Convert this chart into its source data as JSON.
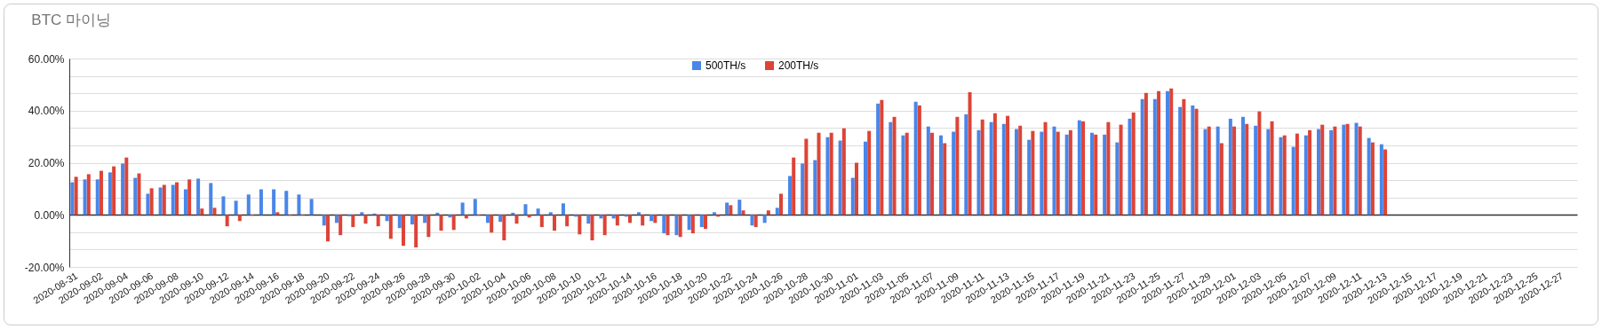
{
  "chart_data": {
    "type": "bar",
    "title": "BTC 마이닝",
    "categories": [
      "2020-08-31",
      null,
      "2020-09-02",
      null,
      "2020-09-04",
      null,
      "2020-09-06",
      null,
      "2020-09-08",
      null,
      "2020-09-10",
      null,
      "2020-09-12",
      null,
      "2020-09-14",
      null,
      "2020-09-16",
      null,
      "2020-09-18",
      null,
      "2020-09-20",
      null,
      "2020-09-22",
      null,
      "2020-09-24",
      null,
      "2020-09-26",
      null,
      "2020-09-28",
      null,
      "2020-09-30",
      null,
      "2020-10-02",
      null,
      "2020-10-04",
      null,
      "2020-10-06",
      null,
      "2020-10-08",
      null,
      "2020-10-10",
      null,
      "2020-10-12",
      null,
      "2020-10-14",
      null,
      "2020-10-16",
      null,
      "2020-10-18",
      null,
      "2020-10-20",
      null,
      "2020-10-22",
      null,
      "2020-10-24",
      null,
      "2020-10-26",
      null,
      "2020-10-28",
      null,
      "2020-10-30",
      null,
      "2020-11-01",
      null,
      "2020-11-03",
      null,
      "2020-11-05",
      null,
      "2020-11-07",
      null,
      "2020-11-09",
      null,
      "2020-11-11",
      null,
      "2020-11-13",
      null,
      "2020-11-15",
      null,
      "2020-11-17",
      null,
      "2020-11-19",
      null,
      "2020-11-21",
      null,
      "2020-11-23",
      null,
      "2020-11-25",
      null,
      "2020-11-27",
      null,
      "2020-11-29",
      null,
      "2020-12-01",
      null,
      "2020-12-03",
      null,
      "2020-12-05",
      null,
      "2020-12-07",
      null,
      "2020-12-09",
      null,
      "2020-12-11",
      null,
      "2020-12-13",
      null,
      "2020-12-15",
      null,
      "2020-12-17",
      null,
      "2020-12-19",
      null,
      "2020-12-21",
      null,
      "2020-12-23",
      null,
      "2020-12-25",
      null,
      "2020-12-27",
      null
    ],
    "series": [
      {
        "name": "500TH/s",
        "color": "#4a86e8",
        "values": [
          12.5,
          13.6,
          13.6,
          16.3,
          19.7,
          14.2,
          8.1,
          10.5,
          11.5,
          9.8,
          13.9,
          12.2,
          7.1,
          5.4,
          7.8,
          9.8,
          9.8,
          9.2,
          7.8,
          6.1,
          -4.1,
          -3.1,
          -0.5,
          1.0,
          0.5,
          -2.4,
          -5.1,
          -3.7,
          -3.1,
          0.8,
          -1.0,
          4.7,
          6.1,
          -3.1,
          -2.7,
          0.8,
          4.1,
          2.4,
          1.0,
          4.4,
          -0.7,
          -3.4,
          -1.4,
          -1.4,
          -0.7,
          1.0,
          -2.4,
          -7.1,
          -7.8,
          -5.8,
          -4.7,
          1.0,
          4.7,
          5.8,
          -4.1,
          -3.1,
          2.7,
          14.9,
          19.7,
          21.0,
          29.8,
          28.5,
          14.2,
          28.1,
          42.7,
          35.6,
          30.5,
          43.4,
          33.9,
          30.5,
          31.9,
          38.6,
          32.5,
          35.6,
          34.9,
          32.9,
          28.8,
          31.9,
          33.9,
          30.8,
          36.3,
          31.5,
          30.8,
          27.8,
          36.9,
          44.4,
          44.4,
          47.5,
          41.4,
          42.0,
          32.9,
          33.9,
          36.9,
          37.6,
          34.2,
          32.9,
          29.8,
          26.1,
          30.5,
          32.9,
          32.5,
          34.6,
          35.3,
          29.5,
          27.1,
          null,
          null,
          null,
          null,
          null,
          null,
          null,
          null,
          null,
          null,
          null,
          null,
          null,
          null,
          null
        ]
      },
      {
        "name": "200TH/s",
        "color": "#dc4437",
        "values": [
          14.6,
          15.6,
          16.9,
          18.6,
          22.0,
          15.9,
          10.2,
          11.5,
          12.5,
          13.6,
          2.4,
          2.7,
          -4.4,
          -2.4,
          -0.3,
          0,
          1.0,
          -0.3,
          -0.2,
          0,
          -10.2,
          -7.8,
          -4.7,
          -3.4,
          -4.4,
          -9.2,
          -11.9,
          -12.5,
          -8.5,
          -6.1,
          -5.8,
          -1.4,
          -0.3,
          -6.8,
          -9.8,
          -3.4,
          -1.0,
          -4.7,
          -6.1,
          -4.4,
          -7.5,
          -9.8,
          -7.8,
          -4.1,
          -3.1,
          -4.1,
          -3.1,
          -7.8,
          -8.5,
          -7.1,
          -5.4,
          -0.7,
          3.7,
          1.7,
          -4.7,
          1.7,
          8.1,
          22.0,
          29.2,
          31.5,
          31.5,
          33.2,
          20.0,
          32.2,
          44.1,
          37.6,
          31.5,
          42.0,
          31.5,
          27.5,
          37.6,
          47.1,
          36.6,
          39.0,
          38.0,
          34.2,
          32.2,
          35.6,
          31.9,
          32.5,
          35.9,
          30.8,
          35.6,
          34.6,
          39.3,
          46.8,
          47.5,
          48.5,
          44.4,
          40.7,
          33.9,
          27.5,
          33.9,
          34.9,
          39.7,
          35.9,
          30.5,
          31.2,
          32.5,
          34.6,
          33.9,
          34.9,
          33.9,
          27.8,
          25.1,
          null,
          null,
          null,
          null,
          null,
          null,
          null,
          null,
          null,
          null,
          null,
          null,
          null,
          null,
          null
        ]
      }
    ],
    "ylim": [
      -20,
      60
    ],
    "yticks": [
      {
        "value": -20,
        "label": "-20.00%"
      },
      {
        "value": -13.33,
        "label": null
      },
      {
        "value": -6.67,
        "label": null
      },
      {
        "value": 0,
        "label": "0.00%"
      },
      {
        "value": 6.67,
        "label": null
      },
      {
        "value": 13.33,
        "label": null
      },
      {
        "value": 20,
        "label": "20.00%"
      },
      {
        "value": 26.67,
        "label": null
      },
      {
        "value": 33.33,
        "label": null
      },
      {
        "value": 40,
        "label": "40.00%"
      },
      {
        "value": 46.67,
        "label": null
      },
      {
        "value": 53.33,
        "label": null
      },
      {
        "value": 60,
        "label": "60.00%"
      }
    ],
    "grid": "y",
    "legend": "top"
  }
}
